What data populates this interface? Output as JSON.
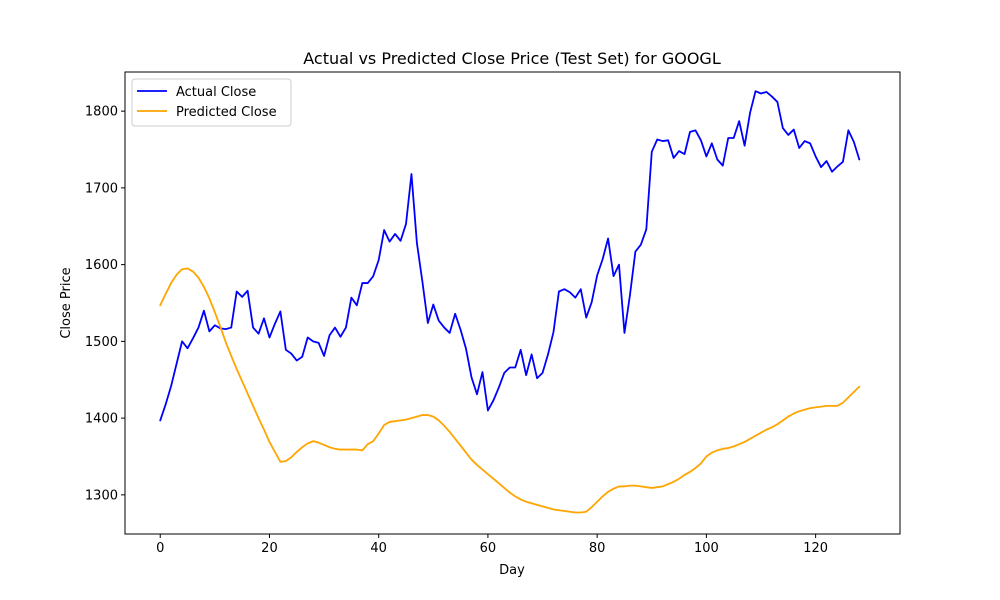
{
  "chart_data": {
    "type": "line",
    "title": "Actual vs Predicted Close Price (Test Set) for GOOGL",
    "xlabel": "Day",
    "ylabel": "Close Price",
    "xlim": [
      -6.45,
      135.45
    ],
    "ylim": [
      1249,
      1851
    ],
    "xticks": [
      0,
      20,
      40,
      60,
      80,
      100,
      120
    ],
    "yticks": [
      1300,
      1400,
      1500,
      1600,
      1700,
      1800
    ],
    "grid": false,
    "legend_position": "upper left",
    "series": [
      {
        "name": "Actual Close",
        "color": "#0000ff",
        "values": [
          1397,
          1418,
          1442,
          1471,
          1500,
          1491,
          1504,
          1518,
          1540,
          1513,
          1521,
          1517,
          1516,
          1518,
          1565,
          1558,
          1566,
          1518,
          1510,
          1530,
          1505,
          1523,
          1539,
          1489,
          1484,
          1475,
          1480,
          1505,
          1500,
          1498,
          1481,
          1508,
          1518,
          1506,
          1518,
          1557,
          1547,
          1576,
          1576,
          1585,
          1606,
          1645,
          1630,
          1640,
          1631,
          1653,
          1718,
          1628,
          1578,
          1524,
          1548,
          1527,
          1518,
          1511,
          1536,
          1515,
          1490,
          1453,
          1431,
          1460,
          1410,
          1423,
          1440,
          1459,
          1466,
          1466,
          1489,
          1456,
          1483,
          1452,
          1459,
          1483,
          1512,
          1565,
          1568,
          1564,
          1557,
          1568,
          1531,
          1551,
          1586,
          1607,
          1634,
          1585,
          1600,
          1511,
          1560,
          1617,
          1626,
          1646,
          1747,
          1763,
          1761,
          1762,
          1739,
          1748,
          1744,
          1773,
          1775,
          1762,
          1741,
          1758,
          1737,
          1729,
          1765,
          1765,
          1787,
          1755,
          1798,
          1826,
          1823,
          1825,
          1819,
          1812,
          1778,
          1769,
          1776,
          1752,
          1761,
          1758,
          1741,
          1727,
          1735,
          1721,
          1728,
          1734,
          1775,
          1760,
          1737
        ]
      },
      {
        "name": "Predicted Close",
        "color": "#ffa500",
        "values": [
          1547,
          1562,
          1576,
          1587,
          1594,
          1595,
          1591,
          1583,
          1571,
          1556,
          1538,
          1519,
          1499,
          1481,
          1464,
          1448,
          1432,
          1416,
          1400,
          1385,
          1369,
          1356,
          1343,
          1344,
          1349,
          1356,
          1362,
          1367,
          1370,
          1368,
          1365,
          1362,
          1360,
          1359,
          1359,
          1359,
          1359,
          1358,
          1366,
          1370,
          1380,
          1391,
          1395,
          1396,
          1397,
          1398,
          1400,
          1402,
          1404,
          1404,
          1402,
          1397,
          1390,
          1382,
          1373,
          1364,
          1355,
          1346,
          1339,
          1333,
          1327,
          1321,
          1315,
          1309,
          1303,
          1298,
          1294,
          1291,
          1289,
          1287,
          1285,
          1283,
          1281,
          1280,
          1279,
          1278,
          1277,
          1277,
          1278,
          1284,
          1291,
          1298,
          1304,
          1308,
          1311,
          1311,
          1312,
          1312,
          1311,
          1310,
          1309,
          1310,
          1311,
          1314,
          1317,
          1321,
          1326,
          1330,
          1335,
          1341,
          1350,
          1355,
          1358,
          1360,
          1361,
          1363,
          1366,
          1369,
          1373,
          1377,
          1381,
          1385,
          1388,
          1392,
          1397,
          1402,
          1406,
          1409,
          1411,
          1413,
          1414,
          1415,
          1416,
          1416,
          1416,
          1420,
          1427,
          1434,
          1441
        ]
      }
    ]
  }
}
